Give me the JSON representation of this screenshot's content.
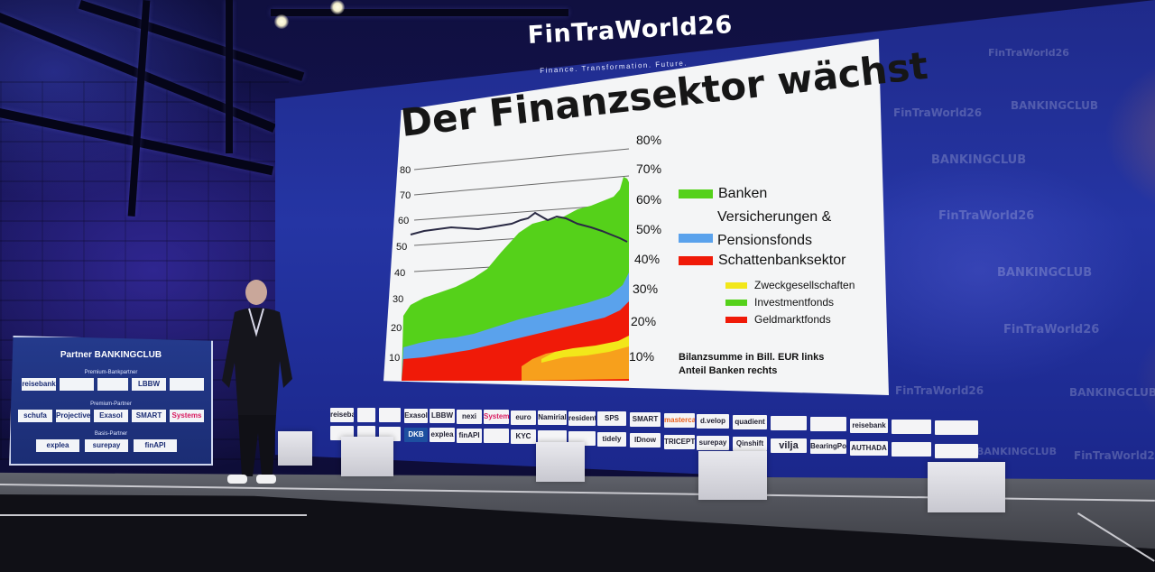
{
  "event": {
    "name": "FinTraWorld26",
    "tagline": "Finance. Transformation. Future."
  },
  "watermarks": {
    "bankingclub": "BANKINGCLUB",
    "fintraworld": "FinTraWorld26"
  },
  "slide": {
    "title": "Der Finanzsektor wächst",
    "left_ticks": [
      "80",
      "70",
      "60",
      "50",
      "40",
      "30",
      "20",
      "10"
    ],
    "right_ticks": [
      "80%",
      "70%",
      "60%",
      "50%",
      "40%",
      "30%",
      "20%",
      "10%"
    ],
    "legend": [
      {
        "label": "Banken",
        "color": "#55d11a"
      },
      {
        "label": "Versicherungen &",
        "color": "#5aa2ec"
      },
      {
        "label": "Pensionsfonds",
        "color": ""
      },
      {
        "label": "Schattenbanksektor",
        "color": "#f01a08"
      }
    ],
    "sublegend": [
      {
        "label": "Zweckgesellschaften",
        "color": "#f2e71a"
      },
      {
        "label": "Investmentfonds",
        "color": "#55d11a"
      },
      {
        "label": "Geldmarktfonds",
        "color": "#f01a08"
      }
    ],
    "note_line1": "Bilanzsumme in Bill. EUR links",
    "note_line2": "Anteil Banken rechts"
  },
  "sponsors": {
    "row1": [
      "reisebank",
      "",
      "",
      "Exasol",
      "LBBW",
      "nexi",
      "Systems",
      "euro",
      "Namirial",
      "resident",
      "SPS",
      "SMART",
      "mastercard",
      "d.velop",
      "quadient",
      "",
      "",
      "reisebank",
      "",
      ""
    ],
    "row2": [
      "",
      "",
      "",
      "DKB",
      "explea",
      "finAPI",
      "",
      "KYC",
      "",
      "",
      "tidely",
      "IDnow",
      "TRICEPT",
      "surepay",
      "Qinshift",
      "vilja",
      "BearingPoint",
      "AUTHADA",
      "",
      ""
    ]
  },
  "partner_banner": {
    "title": "Partner BANKINGCLUB",
    "tier1": "Premium-Bankpartner",
    "tier2": "Premium-Partner",
    "tier3": "Basis-Partner",
    "row1": [
      "reisebank",
      "",
      "",
      "LBBW",
      ""
    ],
    "row2": [
      "schufa",
      "Projective",
      "Exasol",
      "SMART",
      "Systems"
    ],
    "row3": [
      "explea",
      "surepay",
      "finAPI"
    ]
  },
  "colors": {
    "banks": "#55d11a",
    "insurance": "#5aa2ec",
    "shadow": "#f01a08",
    "spv": "#f2e71a",
    "orange": "#f7a01c",
    "share_line": "#2a2a44"
  }
}
